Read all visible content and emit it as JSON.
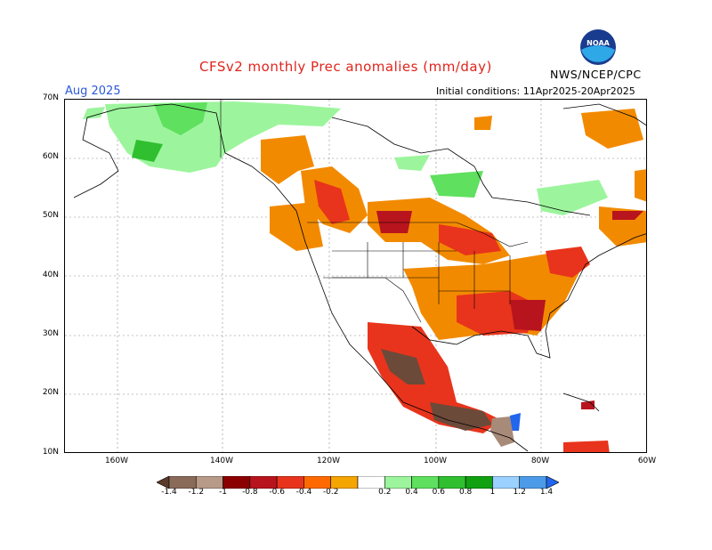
{
  "header": {
    "title": "CFSv2 monthly Prec anomalies (mm/day)",
    "month": "Aug 2025",
    "initial_conditions": "Initial conditions: 11Apr2025-20Apr2025",
    "agency": "NWS/NCEP/CPC",
    "logo_text": "NOAA"
  },
  "map": {
    "lat_labels": [
      "70N",
      "60N",
      "50N",
      "40N",
      "30N",
      "20N",
      "10N"
    ],
    "lon_labels": [
      "160W",
      "140W",
      "120W",
      "100W",
      "80W",
      "60W"
    ]
  },
  "legend": {
    "labels": [
      "-1.4",
      "-1.2",
      "-1",
      "-0.8",
      "-0.6",
      "-0.4",
      "-0.2",
      "0.2",
      "0.4",
      "0.6",
      "0.8",
      "1",
      "1.2",
      "1.4"
    ],
    "colors": [
      "#6b4a3a",
      "#a88a78",
      "#ffffff",
      "#8b0000",
      "#b8141d",
      "#e8341c",
      "#f24a10",
      "#f28a00",
      "#ffffff",
      "#9cf59c",
      "#5fe05f",
      "#2fbf2f",
      "#10a010",
      "#0f8f0f",
      "#9ad1ff",
      "#4c9be8",
      "#2266ee"
    ]
  }
}
